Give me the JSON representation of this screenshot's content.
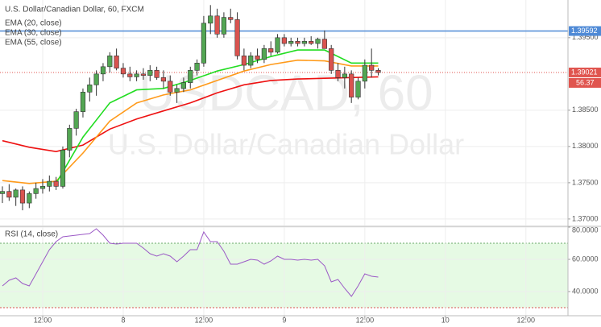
{
  "chart_data": [
    {
      "type": "candlestick",
      "title": "U.S. Dollar/Canadian Dollar, 60, FXCM",
      "watermark": "USDCAD, 60",
      "watermark_subtitle": "U.S. Dollar/Canadian Dollar",
      "x": [
        0,
        1,
        2,
        3,
        4,
        5,
        6,
        7,
        8,
        9,
        10,
        11,
        12,
        13,
        14,
        15,
        16,
        17,
        18,
        19,
        20,
        21,
        22,
        23,
        24,
        25,
        26,
        27,
        28,
        29,
        30,
        31,
        32,
        33,
        34,
        35,
        36,
        37,
        38,
        39,
        40,
        41,
        42,
        43,
        44,
        45,
        46,
        47,
        48,
        49,
        50,
        51,
        52,
        53,
        54,
        55,
        56
      ],
      "open": [
        1.3735,
        1.3738,
        1.373,
        1.374,
        1.3722,
        1.3735,
        1.3742,
        1.3745,
        1.3752,
        1.3745,
        1.3795,
        1.3825,
        1.3848,
        1.3875,
        1.3885,
        1.39,
        1.391,
        1.3925,
        1.3908,
        1.39,
        1.3896,
        1.39,
        1.3898,
        1.3905,
        1.3895,
        1.389,
        1.3875,
        1.388,
        1.3888,
        1.3905,
        1.3915,
        1.397,
        1.398,
        1.3955,
        1.3978,
        1.3975,
        1.3925,
        1.3912,
        1.3925,
        1.392,
        1.3935,
        1.393,
        1.395,
        1.3942,
        1.3945,
        1.3942,
        1.3945,
        1.3942,
        1.3948,
        1.3935,
        1.3905,
        1.3895,
        1.39,
        1.3868,
        1.389,
        1.3912,
        1.3905
      ],
      "high": [
        1.3745,
        1.3748,
        1.3742,
        1.3745,
        1.3738,
        1.375,
        1.3755,
        1.376,
        1.3758,
        1.38,
        1.383,
        1.3852,
        1.388,
        1.3895,
        1.3905,
        1.3915,
        1.393,
        1.3935,
        1.3915,
        1.391,
        1.3905,
        1.3908,
        1.3912,
        1.391,
        1.3905,
        1.3898,
        1.3885,
        1.3895,
        1.391,
        1.392,
        1.398,
        1.3995,
        1.399,
        1.3985,
        1.399,
        1.3985,
        1.3935,
        1.393,
        1.3935,
        1.394,
        1.3945,
        1.3955,
        1.3955,
        1.395,
        1.395,
        1.395,
        1.3952,
        1.395,
        1.396,
        1.394,
        1.3915,
        1.391,
        1.3905,
        1.3895,
        1.392,
        1.3935,
        1.3908
      ],
      "low": [
        1.3722,
        1.3725,
        1.3718,
        1.3712,
        1.3715,
        1.3728,
        1.3735,
        1.3738,
        1.374,
        1.3742,
        1.3785,
        1.3815,
        1.384,
        1.3862,
        1.387,
        1.389,
        1.3902,
        1.3905,
        1.3895,
        1.389,
        1.389,
        1.3892,
        1.389,
        1.3892,
        1.388,
        1.387,
        1.386,
        1.3875,
        1.388,
        1.3898,
        1.391,
        1.3955,
        1.395,
        1.395,
        1.397,
        1.392,
        1.3905,
        1.3908,
        1.3915,
        1.3915,
        1.3925,
        1.3928,
        1.3938,
        1.3938,
        1.3938,
        1.3938,
        1.394,
        1.3935,
        1.3935,
        1.39,
        1.389,
        1.388,
        1.386,
        1.3865,
        1.388,
        1.3895,
        1.3898
      ],
      "close": [
        1.3738,
        1.373,
        1.374,
        1.3722,
        1.3735,
        1.3742,
        1.3745,
        1.3752,
        1.3745,
        1.3795,
        1.3825,
        1.3848,
        1.3875,
        1.3885,
        1.39,
        1.391,
        1.3925,
        1.3908,
        1.39,
        1.3896,
        1.39,
        1.3898,
        1.3905,
        1.3895,
        1.389,
        1.3875,
        1.388,
        1.3888,
        1.3905,
        1.3915,
        1.397,
        1.398,
        1.3955,
        1.3978,
        1.3975,
        1.3925,
        1.3912,
        1.3925,
        1.392,
        1.3935,
        1.393,
        1.395,
        1.3942,
        1.3945,
        1.3942,
        1.3945,
        1.3942,
        1.3948,
        1.3935,
        1.3905,
        1.3895,
        1.39,
        1.3868,
        1.389,
        1.3912,
        1.3905,
        1.3902
      ],
      "up_color": "#53a653",
      "down_color": "#d9534f",
      "overlays": [
        {
          "name": "EMA (20, close)",
          "color": "#22dd22",
          "x": [
            0,
            4,
            8,
            12,
            16,
            20,
            24,
            28,
            32,
            36,
            40,
            44,
            48,
            52,
            56
          ],
          "values": [
            null,
            null,
            1.3749,
            1.3813,
            1.386,
            1.3878,
            1.388,
            1.3891,
            1.3904,
            1.3913,
            1.3924,
            1.3933,
            1.3933,
            1.3915,
            1.3915
          ]
        },
        {
          "name": "EMA (30, close)",
          "color": "#ff9a1a",
          "x": [
            0,
            4,
            8,
            12,
            16,
            20,
            24,
            28,
            32,
            36,
            40,
            44,
            48,
            52,
            56
          ],
          "values": [
            1.3753,
            1.3749,
            1.3752,
            1.3791,
            1.3835,
            1.386,
            1.3871,
            1.3878,
            1.3891,
            1.3904,
            1.3913,
            1.3919,
            1.3918,
            1.3911,
            1.3911
          ]
        },
        {
          "name": "EMA (55, close)",
          "color": "#ee1111",
          "x": [
            0,
            4,
            8,
            12,
            16,
            20,
            24,
            28,
            32,
            36,
            40,
            44,
            48,
            52,
            56
          ],
          "values": [
            1.3808,
            1.3799,
            1.3793,
            1.3802,
            1.3824,
            1.3838,
            1.3849,
            1.386,
            1.3874,
            1.3885,
            1.3891,
            1.3893,
            1.3894,
            1.3895,
            1.3896
          ]
        }
      ],
      "hlines": [
        {
          "value": 1.39592,
          "color": "#4f8ad6"
        }
      ],
      "last_price": 1.39021,
      "last_price_color": "#e0554f",
      "annotation": "56.37",
      "xlim": [
        -0.36,
        84.27
      ],
      "xticks": [
        {
          "value": 6,
          "label": "12:00"
        },
        {
          "value": 18,
          "label": "8"
        },
        {
          "value": 30,
          "label": "12:00"
        },
        {
          "value": 42,
          "label": "9"
        },
        {
          "value": 54,
          "label": "12:00"
        },
        {
          "value": 66,
          "label": "10"
        },
        {
          "value": 78,
          "label": "12:00"
        }
      ],
      "ylim": [
        1.3691,
        1.4002
      ],
      "yticks": [
        {
          "value": 1.37,
          "label": "1.37000"
        },
        {
          "value": 1.375,
          "label": "1.37500"
        },
        {
          "value": 1.38,
          "label": "1.38000"
        },
        {
          "value": 1.385,
          "label": "1.38500"
        },
        {
          "value": 1.395,
          "label": "1.39500"
        }
      ],
      "grid": true
    },
    {
      "type": "line",
      "title": "RSI (14, close)",
      "color": "#9b59c6",
      "values": [
        43.5,
        47,
        48.5,
        45,
        43.5,
        51,
        58.5,
        66,
        71,
        74,
        74.5,
        75,
        75.5,
        76,
        79,
        75,
        70,
        69.5,
        70,
        70,
        70,
        67,
        63.5,
        62,
        63.5,
        62,
        58.5,
        62,
        66,
        66,
        77,
        71,
        71,
        65,
        57,
        57,
        58.5,
        60,
        59.5,
        57,
        59,
        62,
        60,
        60,
        59.5,
        60,
        59.5,
        60,
        56,
        46,
        47.5,
        42,
        37,
        43.5,
        51,
        49.5,
        49
      ],
      "band": [
        30,
        70
      ],
      "band_color": "#e6fae4",
      "ylim": [
        25,
        80
      ],
      "yticks": [
        {
          "value": 80,
          "label": "80.0000"
        },
        {
          "value": 60,
          "label": "60.0000"
        },
        {
          "value": 40,
          "label": "40.0000"
        }
      ],
      "grid": true
    }
  ]
}
